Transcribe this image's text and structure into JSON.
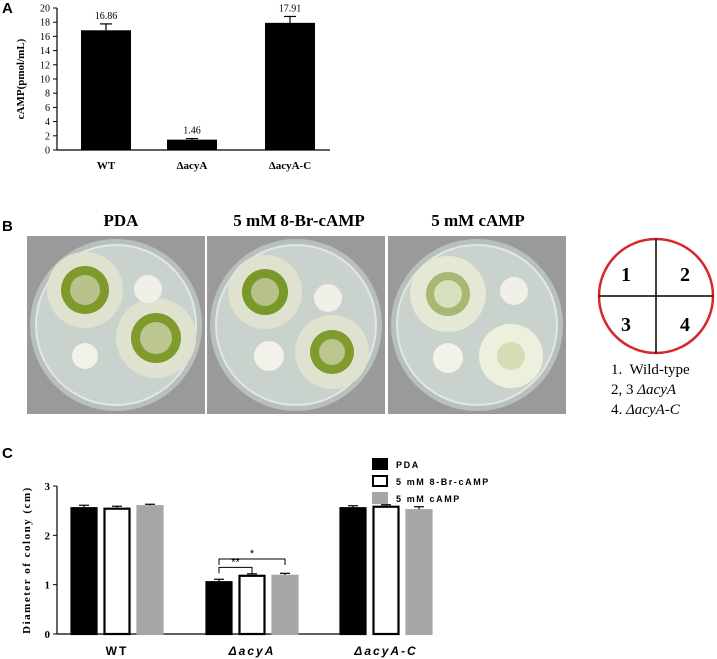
{
  "panels": {
    "a": "A",
    "b": "B",
    "c": "C"
  },
  "colors": {
    "bar": "#000000",
    "gray": "#a6a6a6",
    "agar": "#c9d2cc",
    "ring": "#d62828"
  },
  "chart_data": [
    {
      "type": "bar",
      "ylabel": "cAMP(pmol/mL)",
      "categories": [
        "WT",
        "ΔacyA",
        "ΔacyA-C"
      ],
      "values": [
        16.86,
        1.46,
        17.91
      ],
      "data_labels": [
        "16.86",
        "1.46",
        "17.91"
      ],
      "errors": [
        0.9,
        0.15,
        0.9
      ],
      "ylim": [
        0,
        20
      ],
      "yticks": [
        "0",
        "2",
        "4",
        "6",
        "8",
        "10",
        "12",
        "14",
        "16",
        "18",
        "20"
      ]
    },
    {
      "type": "bar",
      "ylabel": "Diameter of colony (cm)",
      "categories": [
        "WT",
        "ΔacyA",
        "ΔacyA-C"
      ],
      "series": [
        {
          "name": "PDA",
          "values": [
            2.57,
            1.07,
            2.57
          ],
          "errors": [
            0.04,
            0.04,
            0.03
          ]
        },
        {
          "name": "5 mM 8-Br-cAMP",
          "values": [
            2.56,
            1.2,
            2.6
          ],
          "errors": [
            0.03,
            0.02,
            0.02
          ]
        },
        {
          "name": "5 mM cAMP",
          "values": [
            2.61,
            1.2,
            2.53
          ],
          "errors": [
            0.02,
            0.03,
            0.05
          ]
        }
      ],
      "ylim": [
        0,
        3
      ],
      "yticks": [
        "0",
        "1",
        "2",
        "3"
      ],
      "significance": [
        {
          "from": "PDA",
          "to": "5 mM 8-Br-cAMP",
          "label": "**"
        },
        {
          "from": "PDA",
          "to": "5 mM cAMP",
          "label": "*"
        }
      ],
      "legend_position": "top-center"
    }
  ],
  "plates": [
    {
      "title": "PDA"
    },
    {
      "title": "5 mM 8-Br-cAMP"
    },
    {
      "title": "5 mM cAMP"
    }
  ],
  "quadrant_diagram": {
    "labels": [
      "1",
      "2",
      "3",
      "4"
    ]
  },
  "legend_list": [
    {
      "prefix": "1.  ",
      "text": "Wild-type",
      "italic": ""
    },
    {
      "prefix": "2, 3 ",
      "text": "",
      "italic": "ΔacyA"
    },
    {
      "prefix": "4. ",
      "text": "",
      "italic": "ΔacyA-C"
    }
  ]
}
